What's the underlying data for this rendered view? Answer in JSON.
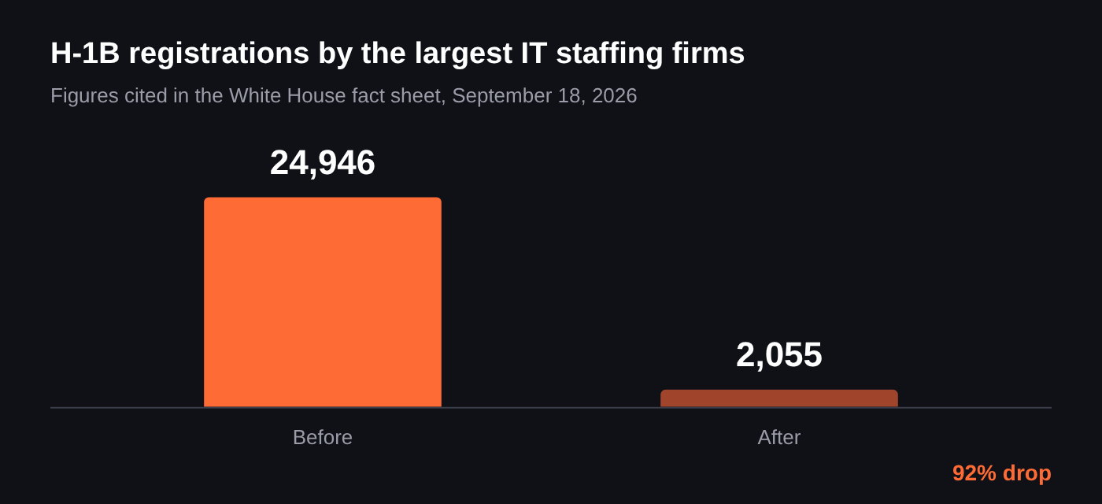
{
  "chart_data": {
    "type": "bar",
    "title": "H-1B registrations by the largest IT staffing firms",
    "subtitle": "Figures cited in the White House fact sheet, September 18, 2026",
    "categories": [
      "Before",
      "After"
    ],
    "values": [
      24946,
      2055
    ],
    "colors": [
      "#ff6b35",
      "#a0452c"
    ],
    "value_labels": [
      "24,946",
      "2,055"
    ],
    "annotations": [
      "92% drop"
    ],
    "grid": false,
    "legend": false,
    "tick_labels": "x"
  }
}
